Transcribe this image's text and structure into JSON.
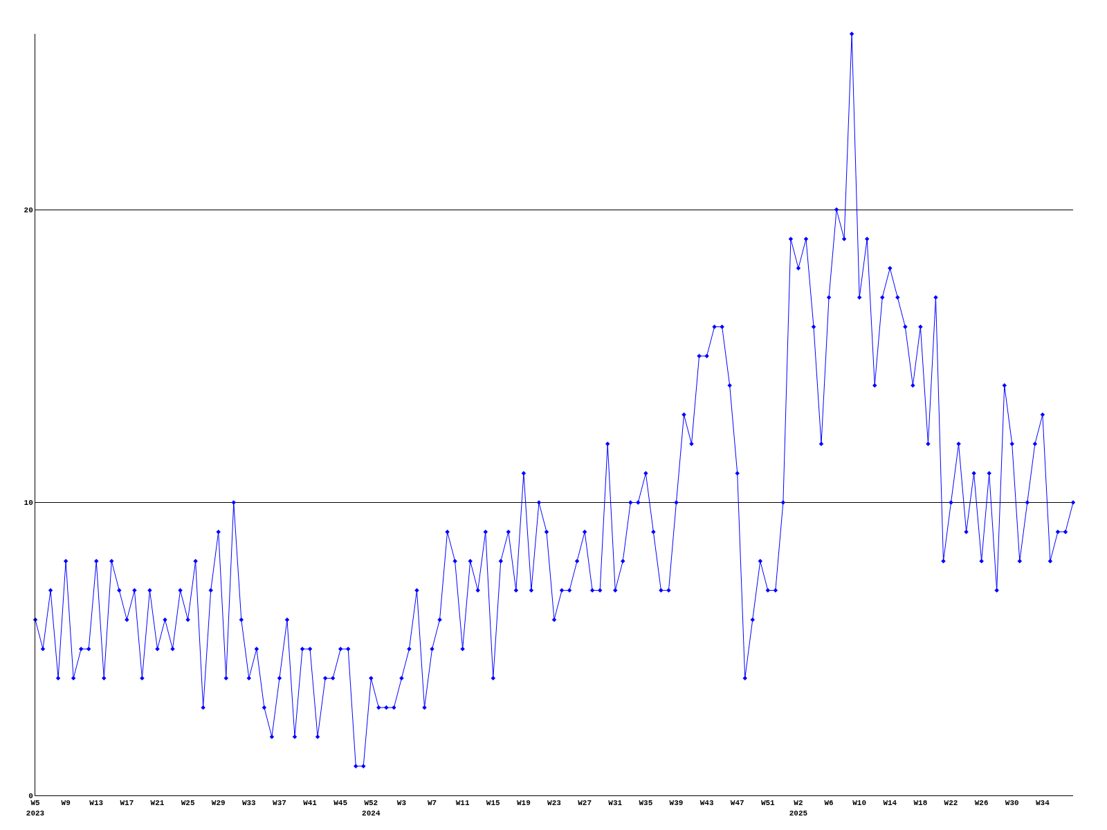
{
  "chart_data": {
    "type": "line",
    "categories": [
      "W5\n2023",
      null,
      null,
      null,
      "W9",
      null,
      null,
      null,
      "W13",
      null,
      null,
      null,
      "W17",
      null,
      null,
      null,
      "W21",
      null,
      null,
      null,
      "W25",
      null,
      null,
      null,
      "W29",
      null,
      null,
      null,
      "W33",
      null,
      null,
      null,
      "W37",
      null,
      null,
      null,
      "W41",
      null,
      null,
      null,
      "W45",
      null,
      null,
      null,
      "W52\n2024",
      null,
      null,
      null,
      "W3",
      null,
      null,
      null,
      "W7",
      null,
      null,
      null,
      "W11",
      null,
      null,
      null,
      "W15",
      null,
      null,
      null,
      "W19",
      null,
      null,
      null,
      "W23",
      null,
      null,
      null,
      "W27",
      null,
      null,
      null,
      "W31",
      null,
      null,
      null,
      "W35",
      null,
      null,
      null,
      "W39",
      null,
      null,
      null,
      "W43",
      null,
      null,
      null,
      "W47",
      null,
      null,
      null,
      "W51",
      null,
      null,
      null,
      "W2\n2025",
      null,
      null,
      null,
      "W6",
      null,
      null,
      null,
      "W10",
      null,
      null,
      null,
      "W14",
      null,
      null,
      null,
      "W18",
      null,
      null,
      null,
      "W22",
      null,
      null,
      null,
      "W26",
      null,
      null,
      null,
      "W30",
      null,
      null,
      null,
      "W34",
      null,
      null,
      null,
      null
    ],
    "series": [
      {
        "color": "#0000ff",
        "values": [
          6,
          5,
          7,
          4,
          8,
          4,
          5,
          5,
          8,
          4,
          8,
          7,
          6,
          7,
          4,
          7,
          5,
          6,
          5,
          7,
          6,
          8,
          3,
          7,
          9,
          4,
          10,
          6,
          4,
          5,
          3,
          2,
          4,
          6,
          2,
          5,
          5,
          2,
          4,
          4,
          5,
          5,
          1,
          1,
          4,
          3,
          3,
          3,
          4,
          5,
          7,
          3,
          5,
          6,
          9,
          8,
          5,
          8,
          7,
          9,
          4,
          8,
          9,
          7,
          11,
          7,
          10,
          9,
          6,
          7,
          7,
          8,
          9,
          7,
          7,
          12,
          7,
          8,
          10,
          10,
          11,
          9,
          7,
          7,
          10,
          13,
          12,
          15,
          15,
          16,
          16,
          14,
          11,
          4,
          6,
          8,
          7,
          7,
          10,
          19,
          18,
          19,
          16,
          12,
          17,
          20,
          19,
          26,
          17,
          19,
          14,
          17,
          18,
          17,
          16,
          14,
          16,
          12,
          17,
          8,
          10,
          12,
          9,
          11,
          8,
          11,
          7,
          14,
          12,
          8,
          10,
          12,
          13,
          8,
          9,
          9,
          10
        ]
      }
    ],
    "ylim": [
      0,
      26
    ],
    "yticks": [
      0,
      10,
      20
    ],
    "grid": "y",
    "legend": false,
    "marker": "diamond",
    "line_style": "solid"
  }
}
